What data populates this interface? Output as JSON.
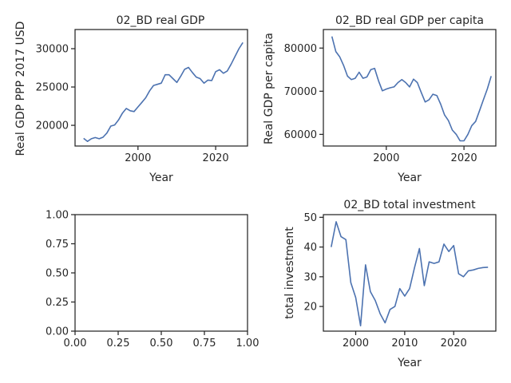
{
  "chart_data": [
    {
      "id": "real_gdp",
      "type": "line",
      "title": "02_BD real GDP",
      "xlabel": "Year",
      "ylabel": "Real GDP PPP 2017 USD",
      "xlim": [
        1983.8,
        2028.2
      ],
      "ylim": [
        17300,
        32500
      ],
      "xticks": [
        2000,
        2020
      ],
      "yticks": [
        20000,
        25000,
        30000
      ],
      "ytick_labels": [
        "20000",
        "25000",
        "30000"
      ],
      "series": [
        {
          "color": "#4c72b0",
          "x": [
            1986,
            1987,
            1988,
            1989,
            1990,
            1991,
            1992,
            1993,
            1994,
            1995,
            1996,
            1997,
            1998,
            1999,
            2000,
            2001,
            2002,
            2003,
            2004,
            2005,
            2006,
            2007,
            2008,
            2009,
            2010,
            2011,
            2012,
            2013,
            2014,
            2015,
            2016,
            2017,
            2018,
            2019,
            2020,
            2021,
            2022,
            2023,
            2024,
            2025,
            2026,
            2027
          ],
          "y": [
            18300,
            17900,
            18250,
            18400,
            18250,
            18450,
            19000,
            19900,
            20050,
            20700,
            21600,
            22200,
            21900,
            21800,
            22400,
            23000,
            23600,
            24500,
            25200,
            25350,
            25500,
            26600,
            26600,
            26100,
            25600,
            26400,
            27300,
            27550,
            26900,
            26300,
            26100,
            25500,
            25900,
            25850,
            27000,
            27250,
            26800,
            27100,
            28000,
            29000,
            30000,
            30800
          ]
        }
      ]
    },
    {
      "id": "real_gdp_per_capita",
      "type": "line",
      "title": "02_BD real GDP per capita",
      "xlabel": "Year",
      "ylabel": "Real GDP per capita",
      "xlim": [
        1983.8,
        2028.2
      ],
      "ylim": [
        57300,
        84300
      ],
      "xticks": [
        2000,
        2020
      ],
      "yticks": [
        60000,
        70000,
        80000
      ],
      "ytick_labels": [
        "60000",
        "70000",
        "80000"
      ],
      "series": [
        {
          "color": "#4c72b0",
          "x": [
            1986,
            1987,
            1988,
            1989,
            1990,
            1991,
            1992,
            1993,
            1994,
            1995,
            1996,
            1997,
            1998,
            1999,
            2000,
            2001,
            2002,
            2003,
            2004,
            2005,
            2006,
            2007,
            2008,
            2009,
            2010,
            2011,
            2012,
            2013,
            2014,
            2015,
            2016,
            2017,
            2018,
            2019,
            2020,
            2021,
            2022,
            2023,
            2024,
            2025,
            2026,
            2027
          ],
          "y": [
            82700,
            79200,
            78000,
            76000,
            73500,
            72700,
            73000,
            74400,
            73000,
            73300,
            75000,
            75300,
            72400,
            70100,
            70500,
            70800,
            71000,
            72000,
            72700,
            72000,
            71000,
            72800,
            72000,
            69700,
            67500,
            68000,
            69300,
            69000,
            67000,
            64500,
            63200,
            61000,
            60000,
            58500,
            58500,
            60000,
            62000,
            63000,
            65500,
            68000,
            70500,
            73500
          ]
        }
      ]
    },
    {
      "id": "empty_axes",
      "type": "line",
      "title": "",
      "xlabel": "",
      "ylabel": "",
      "xlim": [
        0,
        1
      ],
      "ylim": [
        0,
        1
      ],
      "xticks": [
        0,
        0.25,
        0.5,
        0.75,
        1
      ],
      "xtick_labels": [
        "0.00",
        "0.25",
        "0.50",
        "0.75",
        "1.00"
      ],
      "yticks": [
        0,
        0.25,
        0.5,
        0.75,
        1
      ],
      "ytick_labels": [
        "0.00",
        "0.25",
        "0.50",
        "0.75",
        "1.00"
      ],
      "series": []
    },
    {
      "id": "total_investment",
      "type": "line",
      "title": "02_BD total investment",
      "xlabel": "Year",
      "ylabel": "total investment",
      "xlim": [
        1993.4,
        2028.6
      ],
      "ylim": [
        11.7,
        50.9
      ],
      "xticks": [
        2000,
        2010,
        2020
      ],
      "yticks": [
        20,
        30,
        40,
        50
      ],
      "series": [
        {
          "color": "#4c72b0",
          "x": [
            1995,
            1996,
            1997,
            1998,
            1999,
            2000,
            2001,
            2002,
            2003,
            2004,
            2005,
            2006,
            2007,
            2008,
            2009,
            2010,
            2011,
            2012,
            2013,
            2014,
            2015,
            2016,
            2017,
            2018,
            2019,
            2020,
            2021,
            2022,
            2023,
            2024,
            2025,
            2026,
            2027
          ],
          "y": [
            40.0,
            48.5,
            43.5,
            42.5,
            28.0,
            23.0,
            13.5,
            34.0,
            25.0,
            22.0,
            17.5,
            14.5,
            19.0,
            20.0,
            26.0,
            23.5,
            26.0,
            33.0,
            39.5,
            27.0,
            35.0,
            34.5,
            35.0,
            41.0,
            38.5,
            40.5,
            31.0,
            30.0,
            32.0,
            32.3,
            32.8,
            33.1,
            33.2
          ]
        }
      ]
    }
  ]
}
